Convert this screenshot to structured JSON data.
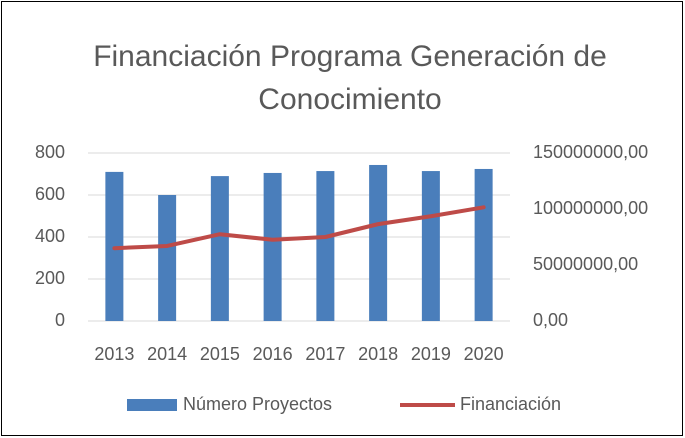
{
  "chart_data": {
    "type": "bar",
    "title": "Financiación Programa Generación de Conocimiento",
    "categories": [
      "2013",
      "2014",
      "2015",
      "2016",
      "2017",
      "2018",
      "2019",
      "2020"
    ],
    "series": [
      {
        "name": "Número Proyectos",
        "color": "#4a7ebb",
        "type": "bar",
        "values": [
          710,
          600,
          690,
          705,
          714,
          743,
          714,
          724
        ]
      },
      {
        "name": "Financiación",
        "color": "#be4b48",
        "type": "line",
        "axis": "y2",
        "values": [
          65000000,
          67000000,
          77500000,
          72500000,
          75000000,
          86500000,
          93500000,
          101500000
        ]
      }
    ],
    "ylim": [
      0,
      800
    ],
    "yticks": [
      0,
      200,
      400,
      600,
      800
    ],
    "y2lim": [
      0,
      150000000
    ],
    "y2ticks": [
      {
        "value": 0,
        "label": "0,00"
      },
      {
        "value": 50000000,
        "label": "50000000,00"
      },
      {
        "value": 100000000,
        "label": "100000000,00"
      },
      {
        "value": 150000000,
        "label": "150000000,00"
      }
    ],
    "grid": true,
    "legend": "bottom"
  }
}
